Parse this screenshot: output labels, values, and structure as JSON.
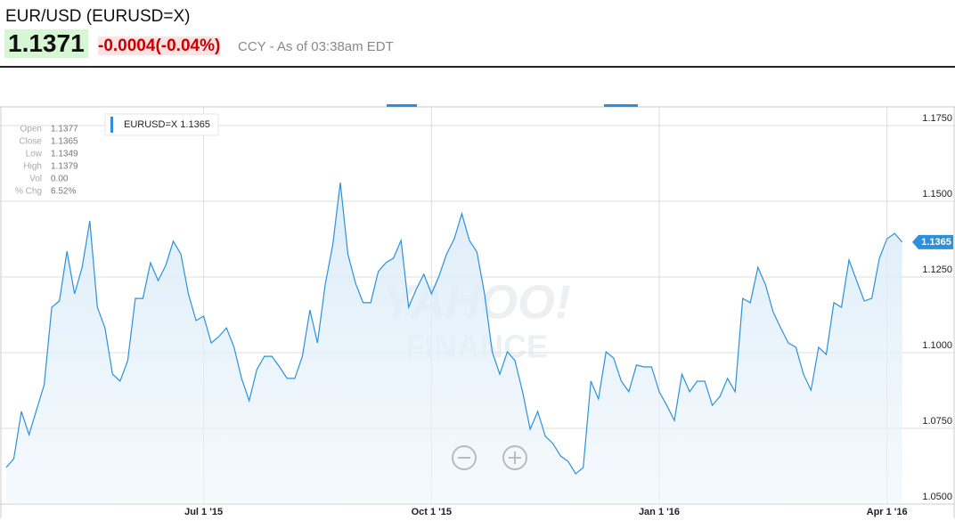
{
  "header": {
    "symbol": "EUR/USD (EURUSD=X)",
    "price": "1.1371",
    "change": "-0.0004",
    "change_pct": "(-0.04%)",
    "meta": "CCY - As of 03:38am EDT"
  },
  "chart_data": {
    "type": "area",
    "categories": [
      null,
      null,
      null,
      null,
      null,
      null,
      null,
      null,
      null,
      null,
      null,
      null,
      null,
      null,
      null,
      null,
      null,
      null,
      null,
      null,
      null,
      null,
      null,
      null,
      null,
      null,
      "Jul 1 '15",
      null,
      null,
      null,
      null,
      null,
      null,
      null,
      null,
      null,
      null,
      null,
      null,
      null,
      null,
      null,
      null,
      null,
      null,
      null,
      null,
      null,
      null,
      null,
      null,
      null,
      null,
      null,
      null,
      null,
      "Oct 1 '15",
      null,
      null,
      null,
      null,
      null,
      null,
      null,
      null,
      null,
      null,
      null,
      null,
      null,
      null,
      null,
      null,
      null,
      null,
      null,
      null,
      null,
      null,
      null,
      null,
      null,
      null,
      null,
      null,
      null,
      "Jan 1 '16",
      null,
      null,
      null,
      null,
      null,
      null,
      null,
      null,
      null,
      null,
      null,
      null,
      null,
      null,
      null,
      null,
      null,
      null,
      null,
      null,
      null,
      null,
      null,
      null,
      null,
      null,
      null,
      null,
      null,
      "Apr 1 '16",
      null,
      null
    ],
    "series": [
      {
        "name": "EURUSD=X",
        "color": "#2b91dc",
        "values": [
          1.0621,
          1.065,
          1.0806,
          1.0729,
          1.0812,
          1.0894,
          1.115,
          1.1171,
          1.1335,
          1.1194,
          1.1282,
          1.1435,
          1.115,
          1.1082,
          1.0929,
          1.0906,
          1.0974,
          1.1179,
          1.1179,
          1.1297,
          1.1238,
          1.1288,
          1.1368,
          1.1326,
          1.1194,
          1.1106,
          1.1121,
          1.1032,
          1.1053,
          1.1082,
          1.1018,
          1.0915,
          1.0841,
          1.0944,
          1.0988,
          1.0988,
          1.0953,
          1.0915,
          1.0915,
          1.0988,
          1.1141,
          1.1032,
          1.1224,
          1.1356,
          1.1562,
          1.1326,
          1.1229,
          1.1165,
          1.1165,
          1.1268,
          1.1297,
          1.1312,
          1.1371,
          1.115,
          1.1209,
          1.1259,
          1.1194,
          1.1253,
          1.1326,
          1.1376,
          1.1459,
          1.1371,
          1.1332,
          1.1194,
          1.1003,
          1.0929,
          1.1003,
          1.0974,
          1.0871,
          1.0747,
          1.0806,
          1.0724,
          1.07,
          1.0659,
          1.0641,
          1.06,
          1.0621,
          1.0906,
          1.0847,
          1.1003,
          1.0982,
          1.0906,
          1.0871,
          1.0959,
          1.0953,
          1.0953,
          1.0871,
          1.0826,
          1.0776,
          1.0929,
          1.0871,
          1.0906,
          1.0906,
          1.0826,
          1.0856,
          1.0915,
          1.0871,
          1.1179,
          1.1165,
          1.1282,
          1.1224,
          1.1135,
          1.1082,
          1.1032,
          1.1018,
          1.0929,
          1.0876,
          1.1018,
          1.0994,
          1.1165,
          1.115,
          1.1306,
          1.1238,
          1.1171,
          1.1179,
          1.1312,
          1.1376,
          1.1394,
          1.1365
        ]
      }
    ],
    "ylim": [
      1.05,
      1.18
    ],
    "yticks": [
      {
        "value": 1.05,
        "label": "1.0500"
      },
      {
        "value": 1.075,
        "label": "1.0750"
      },
      {
        "value": 1.1,
        "label": "1.1000"
      },
      {
        "value": 1.125,
        "label": "1.1250"
      },
      {
        "value": 1.15,
        "label": "1.1500"
      },
      {
        "value": 1.175,
        "label": "1.1750"
      }
    ],
    "grid": true,
    "info": [
      {
        "label": "Open",
        "value": "1.1377"
      },
      {
        "label": "Close",
        "value": "1.1365"
      },
      {
        "label": "Low",
        "value": "1.1349"
      },
      {
        "label": "High",
        "value": "1.1379"
      },
      {
        "label": "Vol",
        "value": "0.00"
      },
      {
        "label": "% Chg",
        "value": "6.52%"
      }
    ],
    "watermark": [
      "YAHOO!",
      "FINANCE"
    ]
  }
}
